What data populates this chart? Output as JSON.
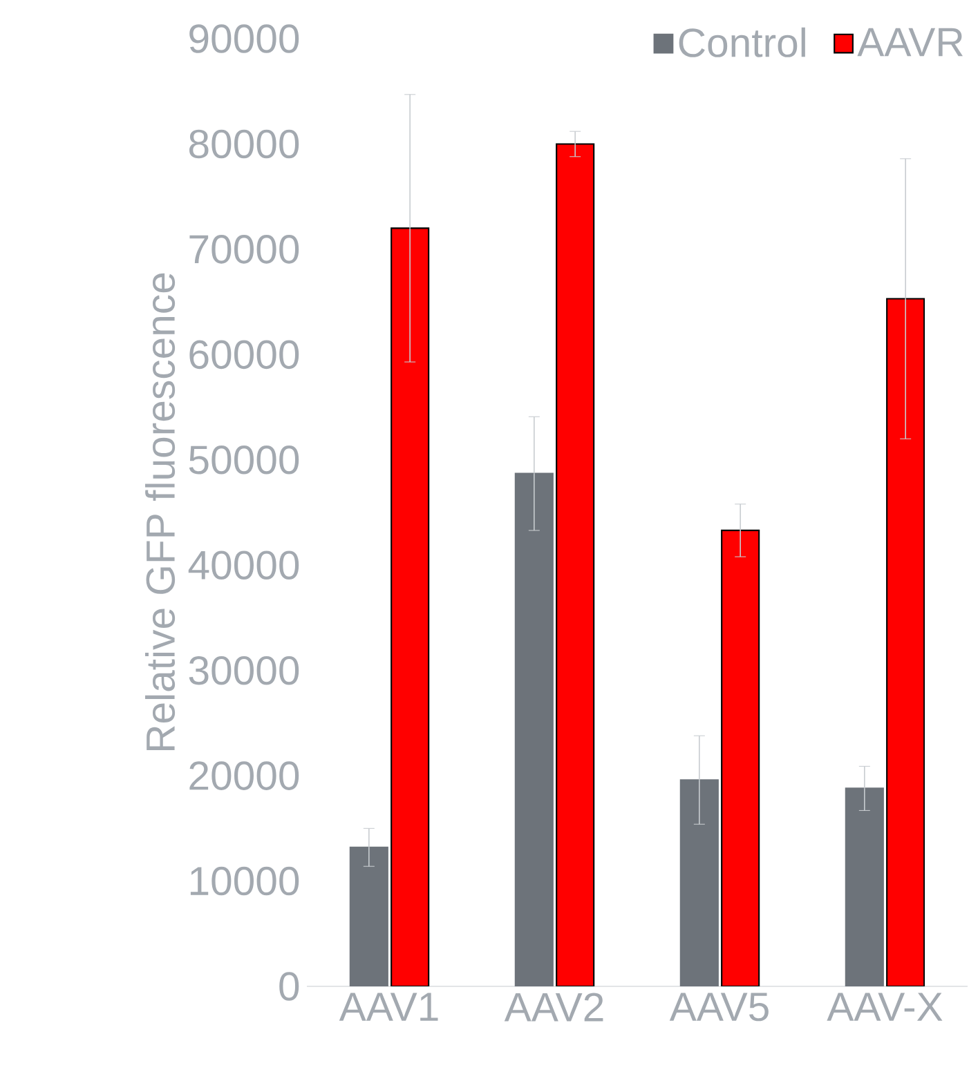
{
  "chart_data": {
    "type": "bar",
    "ylabel": "Relative GFP fluorescence",
    "categories": [
      "AAV1",
      "AAV2",
      "AAV5",
      "AAV-X"
    ],
    "series": [
      {
        "name": "Control",
        "color": "#6d737a",
        "values": [
          13200,
          48700,
          19600,
          18800
        ],
        "errors": [
          1800,
          5400,
          4200,
          2100
        ]
      },
      {
        "name": "AAVR",
        "color": "#ff0000",
        "values": [
          72000,
          80000,
          43300,
          65300
        ],
        "errors": [
          12700,
          1200,
          2500,
          13300
        ]
      }
    ],
    "ylim": [
      0,
      90000
    ],
    "yticks": [
      0,
      10000,
      20000,
      30000,
      40000,
      50000,
      60000,
      70000,
      80000,
      90000
    ],
    "legend": "top right",
    "grid": false
  }
}
